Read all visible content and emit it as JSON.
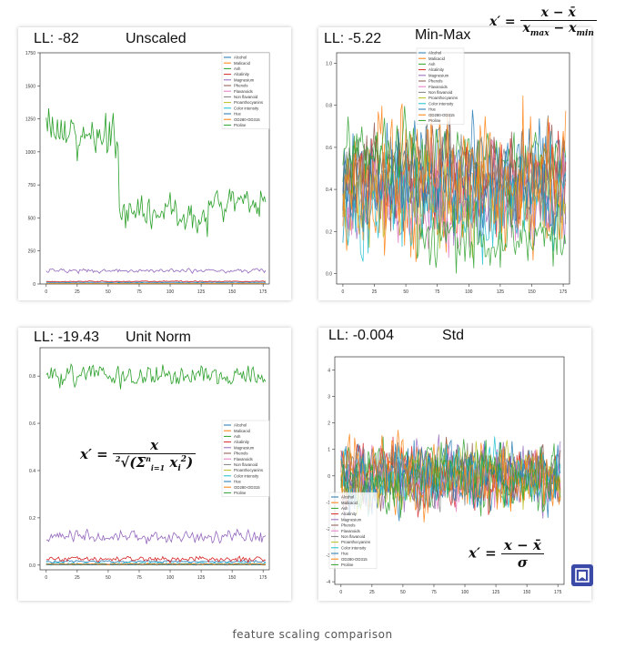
{
  "caption": "feature scaling comparison",
  "legend_labels": [
    "Alcohol",
    "Malicacid",
    "Ash",
    "Alcalinity",
    "Magnesium",
    "Phenols",
    "Flavanoids",
    "Non flavanoid",
    "Proanthocyanins",
    "Color intensity",
    "Hue",
    "OD280-OD315",
    "Proline"
  ],
  "colors": [
    "#1f77b4",
    "#ff7f0e",
    "#2ca02c",
    "#d62728",
    "#9467bd",
    "#8c564b",
    "#e377c2",
    "#7f7f7f",
    "#bcbd22",
    "#17becf",
    "#1f77b4",
    "#ff7f0e",
    "#2ca02c"
  ],
  "badge_icon": "star-bookmark-icon",
  "chart_data": [
    {
      "id": "unscaled",
      "type": "line",
      "ll_label": "LL: -82",
      "title": "Unscaled",
      "formula": "",
      "ylim": [
        0,
        1750
      ],
      "xlim": [
        -5,
        180
      ],
      "yticks": [
        0,
        250,
        500,
        750,
        1000,
        1250,
        1500,
        1750
      ],
      "yticks_labels": [
        "0",
        "250",
        "500",
        "750",
        "1000",
        "1250",
        "1500",
        "1750"
      ],
      "xticks": [
        0,
        25,
        50,
        75,
        100,
        125,
        150,
        175
      ],
      "xticks_labels": [
        "0",
        "25",
        "50",
        "75",
        "100",
        "125",
        "150",
        "175"
      ],
      "legend_position": "upper-right",
      "series_levels": [
        13,
        2.3,
        2.4,
        19.5,
        100,
        2.3,
        2.0,
        0.36,
        1.6,
        5.1,
        0.96,
        2.6,
        750
      ],
      "series_noise": [
        0.8,
        1.1,
        0.27,
        3.3,
        14,
        0.6,
        1.0,
        0.12,
        0.6,
        2.3,
        0.23,
        0.7,
        140
      ],
      "proline_segments": [
        {
          "x0": 0,
          "x1": 58,
          "y0": 1150,
          "y1": 1120,
          "amp": 190
        },
        {
          "x0": 59,
          "x1": 130,
          "y0": 560,
          "y1": 480,
          "amp": 110
        },
        {
          "x0": 131,
          "x1": 177,
          "y0": 600,
          "y1": 650,
          "amp": 120
        }
      ]
    },
    {
      "id": "minmax",
      "type": "line",
      "ll_label": "LL: -5.22",
      "title": "Min-Max",
      "formula": "x' = (x − x̄) / (x_max − x_min)",
      "ylim": [
        -0.05,
        1.05
      ],
      "xlim": [
        -5,
        180
      ],
      "yticks": [
        0.0,
        0.2,
        0.4,
        0.6,
        0.8,
        1.0
      ],
      "yticks_labels": [
        "0.0",
        "0.2",
        "0.4",
        "0.6",
        "0.8",
        "1.0"
      ],
      "xticks": [
        0,
        25,
        50,
        75,
        100,
        125,
        150,
        175
      ],
      "xticks_labels": [
        "0",
        "25",
        "50",
        "75",
        "100",
        "125",
        "150",
        "175"
      ],
      "legend_position": "upper-center",
      "series_levels": [
        0.52,
        0.32,
        0.54,
        0.46,
        0.32,
        0.45,
        0.36,
        0.44,
        0.37,
        0.32,
        0.39,
        0.49,
        0.33
      ],
      "series_noise": [
        0.18,
        0.2,
        0.13,
        0.17,
        0.15,
        0.22,
        0.21,
        0.23,
        0.18,
        0.2,
        0.19,
        0.26,
        0.22
      ]
    },
    {
      "id": "unitnorm",
      "type": "line",
      "ll_label": "LL: -19.43",
      "title": "Unit Norm",
      "formula": "x' = x / ²√(Σⁿᵢ₌₁ xᵢ²)",
      "ylim": [
        -0.02,
        0.92
      ],
      "xlim": [
        -5,
        180
      ],
      "yticks": [
        0.0,
        0.2,
        0.4,
        0.6,
        0.8
      ],
      "yticks_labels": [
        "0.0",
        "0.2",
        "0.4",
        "0.6",
        "0.8"
      ],
      "xticks": [
        0,
        25,
        50,
        75,
        100,
        125,
        150,
        175
      ],
      "xticks_labels": [
        "0",
        "25",
        "50",
        "75",
        "100",
        "125",
        "150",
        "175"
      ],
      "legend_position": "right",
      "series_levels": [
        0.015,
        0.004,
        0.003,
        0.025,
        0.12,
        0.003,
        0.003,
        0.001,
        0.002,
        0.007,
        0.001,
        0.004,
        0.8
      ],
      "series_noise": [
        0.004,
        0.003,
        0.001,
        0.01,
        0.025,
        0.001,
        0.001,
        0.0005,
        0.001,
        0.004,
        0.0005,
        0.002,
        0.04
      ]
    },
    {
      "id": "std",
      "type": "line",
      "ll_label": "LL: -0.004",
      "title": "Std",
      "formula": "x' = (x − x̄) / σ",
      "ylim": [
        -4.1,
        4.5
      ],
      "xlim": [
        -5,
        180
      ],
      "yticks": [
        -4,
        -3,
        -2,
        -1,
        0,
        1,
        2,
        3,
        4
      ],
      "yticks_labels": [
        "-4",
        "-3",
        "-2",
        "-1",
        "0",
        "1",
        "2",
        "3",
        "4"
      ],
      "xticks": [
        0,
        25,
        50,
        75,
        100,
        125,
        150,
        175
      ],
      "xticks_labels": [
        "0",
        "25",
        "50",
        "75",
        "100",
        "125",
        "150",
        "175"
      ],
      "legend_position": "lower-left",
      "series_levels": [
        0,
        0,
        0,
        0,
        0,
        0,
        0,
        0,
        0,
        0,
        0,
        0,
        0
      ],
      "series_noise": [
        1,
        1,
        1,
        1,
        1,
        1,
        1,
        1,
        1,
        1,
        1,
        1,
        1
      ]
    }
  ]
}
